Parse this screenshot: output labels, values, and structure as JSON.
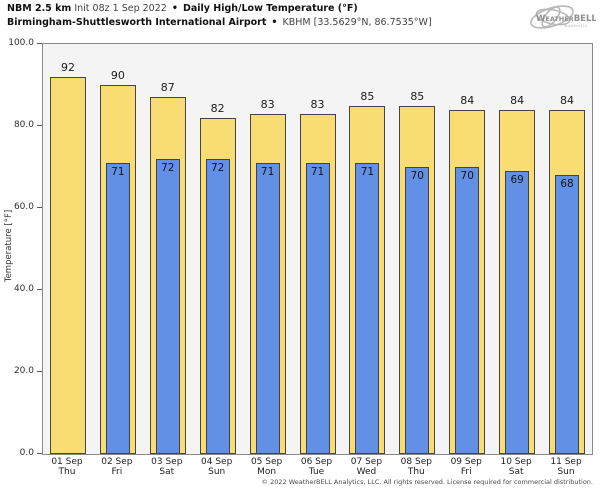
{
  "header": {
    "model_bold": "NBM 2.5 km",
    "init_text": "Init 08z 1 Sep 2022",
    "separator": "•",
    "product_bold": "Daily High/Low Temperature (°F)",
    "station_bold": "Birmingham-Shuttlesworth International Airport",
    "station_meta": "KBHM [33.5629°N, 86.7535°W]"
  },
  "logo": {
    "brand": "WeatherBELL",
    "sub": "Analytics LLC"
  },
  "chart_data": {
    "type": "bar",
    "title": "Daily High/Low Temperature (°F)",
    "categories": [
      "01 Sep",
      "02 Sep",
      "03 Sep",
      "04 Sep",
      "05 Sep",
      "06 Sep",
      "07 Sep",
      "08 Sep",
      "09 Sep",
      "10 Sep",
      "11 Sep"
    ],
    "weekdays": [
      "Thu",
      "Fri",
      "Sat",
      "Sun",
      "Mon",
      "Tue",
      "Wed",
      "Thu",
      "Fri",
      "Sat",
      "Sun"
    ],
    "series": [
      {
        "name": "High",
        "color": "#fadd72",
        "values": [
          92,
          90,
          87,
          82,
          83,
          83,
          85,
          85,
          84,
          84,
          84
        ]
      },
      {
        "name": "Low",
        "color": "#6190e4",
        "values": [
          null,
          71,
          72,
          72,
          71,
          71,
          71,
          70,
          70,
          69,
          68
        ]
      }
    ],
    "ylabel": "Temperature [°F]",
    "ylim": [
      0,
      100
    ],
    "yticks": [
      0,
      20,
      40,
      60,
      80,
      100
    ],
    "ytick_labels": [
      "0.0",
      "20.0",
      "40.0",
      "60.0",
      "80.0",
      "100.0"
    ],
    "grid": false,
    "legend": "none",
    "plot_background": "#f4f4f4"
  },
  "footer": {
    "copyright": "© 2022 WeatherBELL Analytics, LLC. All rights reserved. License required for commercial distribution."
  }
}
